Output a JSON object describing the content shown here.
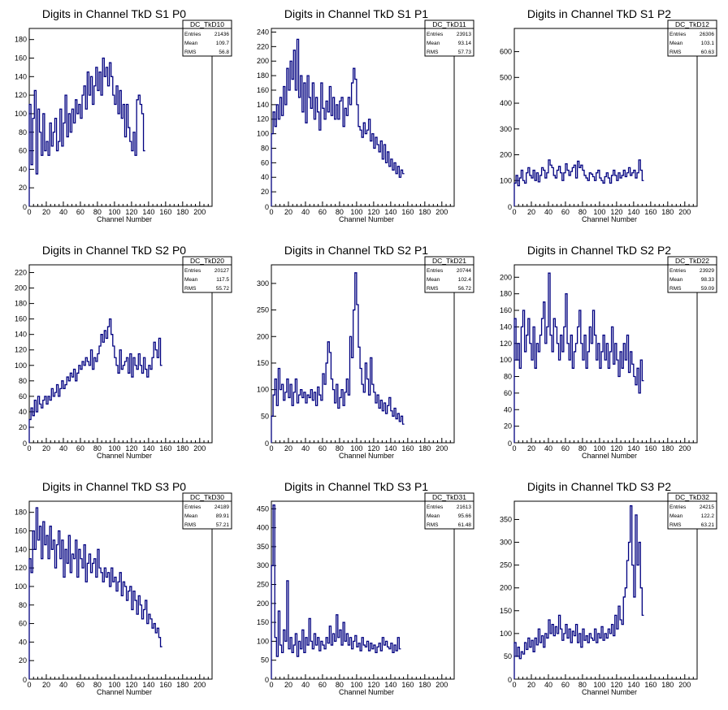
{
  "colors": {
    "line": "#000080",
    "frame": "#000000",
    "background": "#ffffff"
  },
  "stat_labels": [
    "Entries",
    "Mean",
    "RMS"
  ],
  "chart_data": [
    {
      "type": "line",
      "title": "Digits in Channel TkD S1 P0",
      "xlabel": "Channel Number",
      "stats": {
        "name": "DC_TkD10",
        "entries": "21436",
        "mean": "109.7",
        "rms": "56.8"
      },
      "xlim": [
        0,
        220
      ],
      "ylim": [
        0,
        192
      ],
      "xticks": [
        0,
        20,
        40,
        60,
        80,
        100,
        120,
        140,
        160,
        180,
        200
      ],
      "yticks": [
        20,
        40,
        60,
        80,
        100,
        120,
        140,
        160,
        180
      ],
      "x_start": 0,
      "x_step": 2,
      "values": [
        110,
        45,
        95,
        125,
        35,
        105,
        80,
        55,
        100,
        60,
        70,
        55,
        90,
        65,
        80,
        95,
        60,
        70,
        105,
        65,
        90,
        120,
        75,
        100,
        80,
        105,
        90,
        115,
        100,
        110,
        95,
        120,
        130,
        105,
        145,
        120,
        140,
        110,
        130,
        150,
        125,
        145,
        120,
        160,
        140,
        150,
        130,
        155,
        140,
        120,
        110,
        130,
        100,
        125,
        95,
        110,
        75,
        110,
        85,
        70,
        60,
        80,
        55,
        115,
        120,
        110,
        100,
        60
      ]
    },
    {
      "type": "line",
      "title": "Digits in Channel TkD S1 P1",
      "xlabel": "Channel Number",
      "stats": {
        "name": "DC_TkD11",
        "entries": "23913",
        "mean": "93.14",
        "rms": "57.73"
      },
      "xlim": [
        0,
        220
      ],
      "ylim": [
        0,
        245
      ],
      "xticks": [
        0,
        20,
        40,
        60,
        80,
        100,
        120,
        140,
        160,
        180,
        200
      ],
      "yticks": [
        20,
        40,
        60,
        80,
        100,
        120,
        140,
        160,
        180,
        200,
        220,
        240
      ],
      "x_start": 0,
      "x_step": 2,
      "values": [
        100,
        130,
        110,
        140,
        120,
        150,
        125,
        165,
        140,
        190,
        160,
        200,
        175,
        215,
        160,
        230,
        150,
        180,
        130,
        170,
        115,
        180,
        150,
        135,
        170,
        120,
        150,
        130,
        105,
        170,
        135,
        120,
        145,
        130,
        165,
        125,
        150,
        120,
        140,
        120,
        145,
        150,
        110,
        135,
        125,
        150,
        140,
        170,
        190,
        175,
        140,
        110,
        105,
        95,
        115,
        100,
        105,
        120,
        90,
        100,
        80,
        95,
        85,
        75,
        90,
        65,
        85,
        60,
        75,
        55,
        65,
        50,
        60,
        45,
        55,
        40,
        50,
        45
      ]
    },
    {
      "type": "line",
      "title": "Digits in Channel TkD S1 P2",
      "xlabel": "Channel Number",
      "stats": {
        "name": "DC_TkD12",
        "entries": "26306",
        "mean": "103.1",
        "rms": "60.63"
      },
      "xlim": [
        0,
        220
      ],
      "ylim": [
        0,
        690
      ],
      "xticks": [
        0,
        20,
        40,
        60,
        80,
        100,
        120,
        140,
        160,
        180,
        200
      ],
      "yticks": [
        100,
        200,
        300,
        400,
        500,
        600
      ],
      "x_start": 0,
      "x_step": 2,
      "values": [
        90,
        120,
        80,
        110,
        140,
        100,
        90,
        130,
        150,
        120,
        110,
        140,
        100,
        130,
        95,
        120,
        150,
        140,
        110,
        130,
        180,
        160,
        150,
        120,
        110,
        140,
        155,
        130,
        100,
        130,
        165,
        140,
        120,
        135,
        150,
        160,
        110,
        175,
        150,
        160,
        140,
        120,
        110,
        100,
        130,
        125,
        115,
        100,
        130,
        140,
        110,
        100,
        90,
        115,
        130,
        110,
        90,
        120,
        140,
        120,
        100,
        130,
        110,
        120,
        140,
        115,
        130,
        150,
        120,
        130,
        140,
        110,
        130,
        180,
        140,
        100
      ]
    },
    {
      "type": "line",
      "title": "Digits in Channel TkD S2 P0",
      "xlabel": "Channel Number",
      "stats": {
        "name": "DC_TkD20",
        "entries": "20127",
        "mean": "117.5",
        "rms": "55.72"
      },
      "xlim": [
        0,
        220
      ],
      "ylim": [
        0,
        230
      ],
      "xticks": [
        0,
        20,
        40,
        60,
        80,
        100,
        120,
        140,
        160,
        180,
        200
      ],
      "yticks": [
        20,
        40,
        60,
        80,
        100,
        120,
        140,
        160,
        180,
        200,
        220
      ],
      "x_start": 0,
      "x_step": 2,
      "values": [
        30,
        45,
        35,
        55,
        40,
        60,
        50,
        45,
        55,
        60,
        50,
        60,
        55,
        70,
        60,
        65,
        75,
        60,
        70,
        80,
        70,
        75,
        85,
        80,
        90,
        85,
        95,
        80,
        90,
        100,
        95,
        105,
        100,
        110,
        105,
        100,
        120,
        95,
        110,
        105,
        115,
        125,
        140,
        130,
        145,
        135,
        150,
        160,
        140,
        125,
        110,
        100,
        90,
        120,
        95,
        100,
        105,
        110,
        90,
        115,
        85,
        110,
        100,
        95,
        115,
        100,
        90,
        110,
        95,
        85,
        100,
        95,
        110,
        130,
        120,
        110,
        135,
        100
      ]
    },
    {
      "type": "line",
      "title": "Digits in Channel TkD S2 P1",
      "xlabel": "Channel Number",
      "stats": {
        "name": "DC_TkD21",
        "entries": "20744",
        "mean": "102.4",
        "rms": "56.72"
      },
      "xlim": [
        0,
        220
      ],
      "ylim": [
        0,
        335
      ],
      "xticks": [
        0,
        20,
        40,
        60,
        80,
        100,
        120,
        140,
        160,
        180,
        200
      ],
      "yticks": [
        50,
        100,
        150,
        200,
        250,
        300
      ],
      "x_start": 0,
      "x_step": 2,
      "values": [
        50,
        90,
        120,
        70,
        140,
        100,
        110,
        80,
        95,
        120,
        85,
        110,
        70,
        95,
        120,
        75,
        90,
        100,
        85,
        95,
        75,
        90,
        85,
        100,
        80,
        95,
        70,
        105,
        90,
        80,
        130,
        110,
        150,
        190,
        170,
        120,
        100,
        75,
        110,
        65,
        85,
        100,
        70,
        95,
        120,
        90,
        200,
        160,
        250,
        320,
        260,
        180,
        140,
        110,
        95,
        150,
        120,
        90,
        160,
        110,
        95,
        75,
        90,
        65,
        80,
        60,
        75,
        55,
        70,
        85,
        60,
        50,
        65,
        45,
        55,
        40,
        50,
        35
      ]
    },
    {
      "type": "line",
      "title": "Digits in Channel TkD S2 P2",
      "xlabel": "Channel Number",
      "stats": {
        "name": "DC_TkD22",
        "entries": "23929",
        "mean": "98.33",
        "rms": "59.09"
      },
      "xlim": [
        0,
        220
      ],
      "ylim": [
        0,
        215
      ],
      "xticks": [
        0,
        20,
        40,
        60,
        80,
        100,
        120,
        140,
        160,
        180,
        200
      ],
      "yticks": [
        20,
        40,
        60,
        80,
        100,
        120,
        140,
        160,
        180,
        200
      ],
      "x_start": 0,
      "x_step": 2,
      "values": [
        150,
        100,
        120,
        90,
        140,
        160,
        110,
        130,
        150,
        120,
        100,
        140,
        90,
        120,
        110,
        130,
        150,
        170,
        120,
        140,
        205,
        130,
        110,
        150,
        140,
        120,
        100,
        130,
        110,
        140,
        180,
        120,
        100,
        130,
        90,
        110,
        120,
        140,
        160,
        120,
        100,
        130,
        90,
        110,
        140,
        120,
        160,
        130,
        100,
        120,
        90,
        110,
        130,
        100,
        120,
        90,
        110,
        140,
        95,
        120,
        100,
        80,
        110,
        90,
        120,
        100,
        130,
        85,
        110,
        95,
        80,
        70,
        90,
        60,
        100,
        75
      ]
    },
    {
      "type": "line",
      "title": "Digits in Channel TkD S3 P0",
      "xlabel": "Channel Number",
      "stats": {
        "name": "DC_TkD30",
        "entries": "24189",
        "mean": "89.91",
        "rms": "57.21"
      },
      "xlim": [
        0,
        220
      ],
      "ylim": [
        0,
        192
      ],
      "xticks": [
        0,
        20,
        40,
        60,
        80,
        100,
        120,
        140,
        160,
        180,
        200
      ],
      "yticks": [
        20,
        40,
        60,
        80,
        100,
        120,
        140,
        160,
        180
      ],
      "x_start": 0,
      "x_step": 2,
      "values": [
        130,
        115,
        160,
        140,
        185,
        150,
        165,
        130,
        170,
        145,
        155,
        130,
        165,
        140,
        150,
        120,
        145,
        160,
        130,
        150,
        110,
        140,
        125,
        155,
        115,
        135,
        130,
        150,
        110,
        140,
        130,
        120,
        145,
        105,
        125,
        135,
        115,
        125,
        130,
        110,
        140,
        120,
        115,
        105,
        120,
        110,
        115,
        100,
        120,
        105,
        110,
        95,
        105,
        115,
        90,
        105,
        100,
        85,
        95,
        100,
        75,
        95,
        85,
        70,
        90,
        80,
        65,
        75,
        85,
        60,
        70,
        65,
        55,
        60,
        50,
        55,
        45,
        35
      ]
    },
    {
      "type": "line",
      "title": "Digits in Channel TkD S3 P1",
      "xlabel": "Channel Number",
      "stats": {
        "name": "DC_TkD31",
        "entries": "21613",
        "mean": "95.66",
        "rms": "61.48"
      },
      "xlim": [
        0,
        220
      ],
      "ylim": [
        0,
        470
      ],
      "xticks": [
        0,
        20,
        40,
        60,
        80,
        100,
        120,
        140,
        160,
        180,
        200
      ],
      "yticks": [
        50,
        100,
        150,
        200,
        250,
        300,
        350,
        400,
        450
      ],
      "x_start": 0,
      "x_step": 2,
      "values": [
        300,
        460,
        110,
        60,
        180,
        90,
        70,
        130,
        100,
        260,
        80,
        110,
        70,
        90,
        120,
        60,
        100,
        80,
        130,
        70,
        110,
        90,
        160,
        100,
        80,
        120,
        90,
        110,
        75,
        100,
        90,
        80,
        110,
        95,
        140,
        90,
        120,
        100,
        170,
        110,
        130,
        90,
        150,
        100,
        120,
        90,
        110,
        80,
        100,
        115,
        85,
        95,
        75,
        110,
        90,
        85,
        100,
        75,
        95,
        80,
        90,
        70,
        85,
        95,
        75,
        110,
        90,
        100,
        85,
        80,
        95,
        70,
        90,
        75,
        110,
        80
      ]
    },
    {
      "type": "line",
      "title": "Digits in Channel TkD S3 P2",
      "xlabel": "Channel Number",
      "stats": {
        "name": "DC_TkD32",
        "entries": "24215",
        "mean": "122.2",
        "rms": "63.21"
      },
      "xlim": [
        0,
        220
      ],
      "ylim": [
        0,
        390
      ],
      "xticks": [
        0,
        20,
        40,
        60,
        80,
        100,
        120,
        140,
        160,
        180,
        200
      ],
      "yticks": [
        50,
        100,
        150,
        200,
        250,
        300,
        350
      ],
      "x_start": 0,
      "x_step": 2,
      "values": [
        80,
        50,
        70,
        45,
        60,
        55,
        80,
        65,
        90,
        70,
        85,
        60,
        90,
        75,
        110,
        80,
        95,
        70,
        100,
        90,
        130,
        100,
        120,
        95,
        115,
        100,
        140,
        110,
        85,
        100,
        120,
        90,
        110,
        80,
        105,
        95,
        120,
        80,
        100,
        70,
        110,
        85,
        95,
        80,
        100,
        90,
        85,
        110,
        80,
        100,
        90,
        115,
        85,
        100,
        90,
        110,
        100,
        120,
        95,
        140,
        110,
        160,
        130,
        120,
        180,
        200,
        260,
        300,
        380,
        250,
        180,
        360,
        250,
        300,
        200,
        140
      ]
    }
  ]
}
